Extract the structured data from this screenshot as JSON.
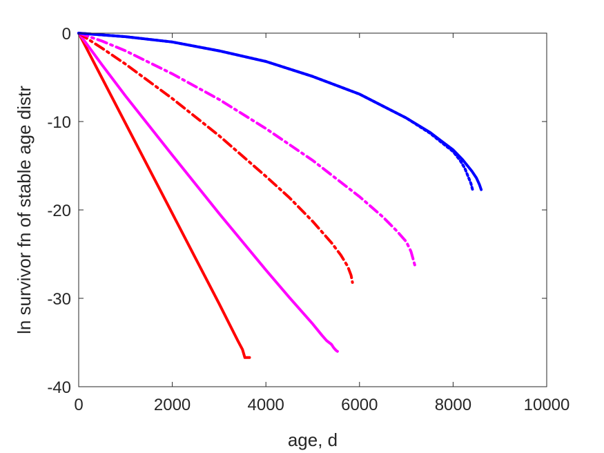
{
  "chart_data": {
    "type": "line",
    "xlabel": "age, d",
    "ylabel": "ln survivor fn of stable age distr",
    "xlim": [
      0,
      10000
    ],
    "ylim": [
      -40,
      0
    ],
    "xticks": [
      0,
      2000,
      4000,
      6000,
      8000,
      10000
    ],
    "yticks": [
      -40,
      -30,
      -20,
      -10,
      0
    ],
    "xtick_labels": [
      "0",
      "2000",
      "4000",
      "6000",
      "8000",
      "10000"
    ],
    "ytick_labels": [
      "-40",
      "-30",
      "-20",
      "-10",
      "0"
    ],
    "grid": false,
    "legend": "none",
    "series": [
      {
        "color": "#ff0000",
        "style": "solid",
        "x": [
          0,
          500,
          1000,
          1500,
          2000,
          2500,
          3000,
          3400,
          3500,
          3550,
          3600,
          3650
        ],
        "y": [
          0,
          -5.1,
          -10.2,
          -15.3,
          -20.4,
          -25.5,
          -30.6,
          -34.8,
          -35.8,
          -36.7,
          -36.7,
          -36.7
        ]
      },
      {
        "color": "#ff00ff",
        "style": "solid",
        "x": [
          0,
          500,
          1000,
          2000,
          3000,
          4000,
          4500,
          5000,
          5200,
          5300,
          5400,
          5450,
          5500,
          5530
        ],
        "y": [
          0,
          -3.6,
          -7.1,
          -13.8,
          -20.4,
          -26.8,
          -29.9,
          -32.9,
          -34.2,
          -34.8,
          -35.2,
          -35.6,
          -35.9,
          -36.0
        ]
      },
      {
        "color": "#ff0000",
        "style": "dashdot",
        "x": [
          0,
          500,
          1000,
          2000,
          3000,
          4000,
          4500,
          5000,
          5400,
          5600,
          5750,
          5820,
          5850
        ],
        "y": [
          0,
          -1.7,
          -3.5,
          -7.4,
          -11.6,
          -16.2,
          -18.6,
          -21.3,
          -23.7,
          -25.1,
          -26.4,
          -27.4,
          -28.2
        ]
      },
      {
        "color": "#ff00ff",
        "style": "dashdot",
        "x": [
          0,
          500,
          1000,
          2000,
          3000,
          4000,
          5000,
          6000,
          6500,
          6800,
          7000,
          7100,
          7200
        ],
        "y": [
          0,
          -0.9,
          -2.0,
          -4.6,
          -7.5,
          -10.8,
          -14.4,
          -18.5,
          -20.8,
          -22.4,
          -23.6,
          -24.7,
          -26.6
        ]
      },
      {
        "color": "#0000ff",
        "style": "solid",
        "x": [
          0,
          1000,
          2000,
          3000,
          4000,
          5000,
          6000,
          7000,
          7500,
          8000,
          8200,
          8400,
          8500,
          8560,
          8600
        ],
        "y": [
          0,
          -0.4,
          -1.0,
          -2.0,
          -3.2,
          -4.9,
          -6.9,
          -9.6,
          -11.2,
          -13.2,
          -14.3,
          -15.6,
          -16.4,
          -17.1,
          -17.7
        ]
      },
      {
        "color": "#0000ff",
        "style": "dotted",
        "x": [
          0,
          1000,
          2000,
          3000,
          4000,
          5000,
          6000,
          7000,
          7500,
          8000,
          8150,
          8250,
          8320,
          8380,
          8420
        ],
        "y": [
          0,
          -0.4,
          -1.0,
          -2.0,
          -3.2,
          -4.9,
          -6.9,
          -9.6,
          -11.3,
          -13.4,
          -14.4,
          -15.3,
          -16.2,
          -17.0,
          -17.8
        ]
      }
    ]
  }
}
